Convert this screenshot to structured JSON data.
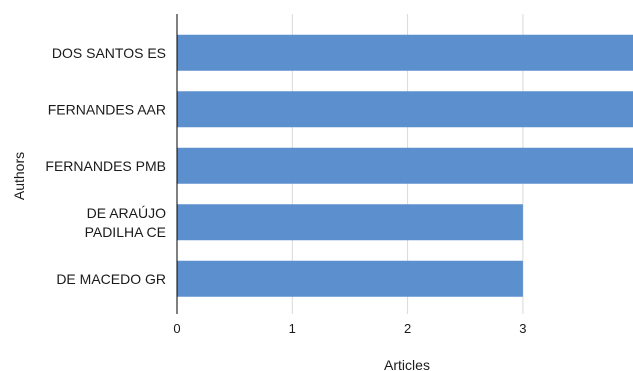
{
  "chart_data": {
    "type": "bar",
    "orientation": "horizontal",
    "categories": [
      [
        "DOS SANTOS ES"
      ],
      [
        "FERNANDES AAR"
      ],
      [
        "FERNANDES PMB"
      ],
      [
        "DE ARAÚJO",
        "PADILHA CE"
      ],
      [
        "DE MACEDO GR"
      ]
    ],
    "values": [
      4,
      4,
      4,
      3,
      3
    ],
    "xlabel": "Articles",
    "ylabel": "Authors",
    "xticks": [
      0,
      1,
      2,
      3
    ],
    "grid": true,
    "bar_color": "#5b8fce"
  }
}
